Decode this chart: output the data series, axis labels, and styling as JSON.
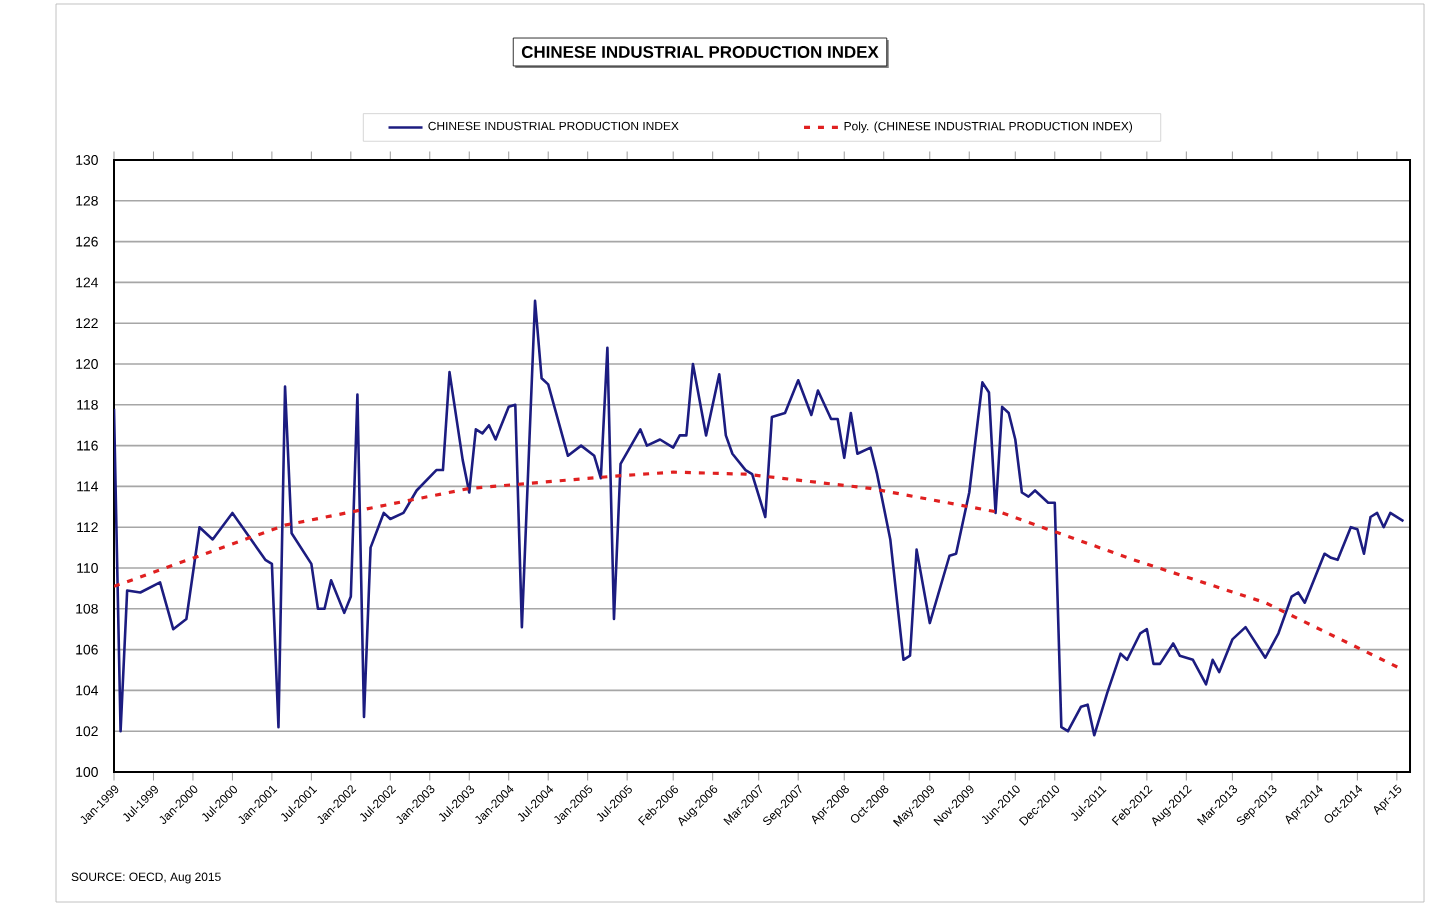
{
  "chart_data": {
    "type": "line",
    "title": "CHINESE INDUSTRIAL PRODUCTION INDEX",
    "annotations": [
      "SOURCE: OECD, Aug 2015"
    ],
    "xlim": [
      "1999-01",
      "2015-06"
    ],
    "xticks": [
      {
        "value": "1999-01",
        "label": "Jan-1999"
      },
      {
        "value": "1999-07",
        "label": "Jul-1999"
      },
      {
        "value": "2000-01",
        "label": "Jan-2000"
      },
      {
        "value": "2000-07",
        "label": "Jul-2000"
      },
      {
        "value": "2001-01",
        "label": "Jan-2001"
      },
      {
        "value": "2001-07",
        "label": "Jul-2001"
      },
      {
        "value": "2002-01",
        "label": "Jan-2002"
      },
      {
        "value": "2002-07",
        "label": "Jul-2002"
      },
      {
        "value": "2003-01",
        "label": "Jan-2003"
      },
      {
        "value": "2003-07",
        "label": "Jul-2003"
      },
      {
        "value": "2004-01",
        "label": "Jan-2004"
      },
      {
        "value": "2004-07",
        "label": "Jul-2004"
      },
      {
        "value": "2005-01",
        "label": "Jan-2005"
      },
      {
        "value": "2005-07",
        "label": "Jul-2005"
      },
      {
        "value": "2006-02",
        "label": "Feb-2006"
      },
      {
        "value": "2006-08",
        "label": "Aug-2006"
      },
      {
        "value": "2007-03",
        "label": "Mar-2007"
      },
      {
        "value": "2007-09",
        "label": "Sep-2007"
      },
      {
        "value": "2008-04",
        "label": "Apr-2008"
      },
      {
        "value": "2008-10",
        "label": "Oct-2008"
      },
      {
        "value": "2009-05",
        "label": "May-2009"
      },
      {
        "value": "2009-11",
        "label": "Nov-2009"
      },
      {
        "value": "2010-06",
        "label": "Jun-2010"
      },
      {
        "value": "2010-12",
        "label": "Dec-2010"
      },
      {
        "value": "2011-07",
        "label": "Jul-2011"
      },
      {
        "value": "2012-02",
        "label": "Feb-2012"
      },
      {
        "value": "2012-08",
        "label": "Aug-2012"
      },
      {
        "value": "2013-03",
        "label": "Mar-2013"
      },
      {
        "value": "2013-09",
        "label": "Sep-2013"
      },
      {
        "value": "2014-04",
        "label": "Apr-2014"
      },
      {
        "value": "2014-10",
        "label": "Oct-2014"
      },
      {
        "value": "2015-04",
        "label": "Apr-15"
      }
    ],
    "ylim": [
      100,
      130
    ],
    "yticks": [
      100,
      102,
      104,
      106,
      108,
      110,
      112,
      114,
      116,
      118,
      120,
      122,
      124,
      126,
      128,
      130
    ],
    "grid": "y",
    "legend": "top",
    "marker": "none",
    "series": [
      {
        "name": "CHINESE INDUSTRIAL PRODUCTION INDEX",
        "color": "#1c1c80",
        "line_style": "solid",
        "x": [
          "1999-01",
          "1999-02",
          "1999-03",
          "1999-05",
          "1999-08",
          "1999-10",
          "1999-12",
          "2000-02",
          "2000-04",
          "2000-07",
          "2000-12",
          "2001-01",
          "2001-02",
          "2001-03",
          "2001-04",
          "2001-07",
          "2001-08",
          "2001-09",
          "2001-10",
          "2001-12",
          "2002-01",
          "2002-02",
          "2002-03",
          "2002-04",
          "2002-06",
          "2002-07",
          "2002-09",
          "2002-11",
          "2003-02",
          "2003-03",
          "2003-04",
          "2003-06",
          "2003-07",
          "2003-08",
          "2003-09",
          "2003-10",
          "2003-11",
          "2004-01",
          "2004-02",
          "2004-03",
          "2004-05",
          "2004-06",
          "2004-07",
          "2004-10",
          "2004-12",
          "2005-02",
          "2005-03",
          "2005-04",
          "2005-05",
          "2005-06",
          "2005-09",
          "2005-10",
          "2005-12",
          "2006-02",
          "2006-03",
          "2006-04",
          "2006-05",
          "2006-07",
          "2006-09",
          "2006-10",
          "2006-11",
          "2007-01",
          "2007-02",
          "2007-04",
          "2007-05",
          "2007-07",
          "2007-09",
          "2007-11",
          "2007-12",
          "2008-02",
          "2008-03",
          "2008-04",
          "2008-05",
          "2008-06",
          "2008-08",
          "2008-09",
          "2008-11",
          "2009-01",
          "2009-02",
          "2009-03",
          "2009-05",
          "2009-08",
          "2009-09",
          "2009-11",
          "2010-01",
          "2010-02",
          "2010-03",
          "2010-04",
          "2010-05",
          "2010-06",
          "2010-07",
          "2010-08",
          "2010-09",
          "2010-11",
          "2010-12",
          "2011-01",
          "2011-02",
          "2011-04",
          "2011-05",
          "2011-06",
          "2011-08",
          "2011-10",
          "2011-11",
          "2012-01",
          "2012-02",
          "2012-03",
          "2012-04",
          "2012-06",
          "2012-07",
          "2012-09",
          "2012-11",
          "2012-12",
          "2013-01",
          "2013-03",
          "2013-05",
          "2013-08",
          "2013-10",
          "2013-12",
          "2014-01",
          "2014-02",
          "2014-05",
          "2014-06",
          "2014-07",
          "2014-09",
          "2014-10",
          "2014-11",
          "2014-12",
          "2015-01",
          "2015-02",
          "2015-03",
          "2015-05"
        ],
        "values": [
          117.8,
          102,
          108.9,
          108.8,
          109.3,
          107,
          107.5,
          112,
          111.4,
          112.7,
          110.4,
          110.2,
          102.2,
          118.9,
          111.7,
          110.2,
          108,
          108,
          109.4,
          107.8,
          108.6,
          118.5,
          102.7,
          111,
          112.7,
          112.4,
          112.7,
          113.8,
          114.8,
          114.8,
          119.6,
          115.3,
          113.7,
          116.8,
          116.6,
          117,
          116.3,
          117.9,
          118,
          107.1,
          123.1,
          119.3,
          119,
          115.5,
          116,
          115.5,
          114.4,
          120.8,
          107.5,
          115.1,
          116.8,
          116,
          116.3,
          115.9,
          116.5,
          116.5,
          120,
          116.5,
          119.5,
          116.5,
          115.6,
          114.8,
          114.6,
          112.5,
          117.4,
          117.6,
          119.2,
          117.5,
          118.7,
          117.3,
          117.3,
          115.4,
          117.6,
          115.6,
          115.9,
          114.6,
          111.4,
          105.5,
          105.7,
          110.9,
          107.3,
          110.6,
          110.7,
          113.7,
          119.1,
          118.6,
          112.7,
          117.9,
          117.6,
          116.3,
          113.7,
          113.5,
          113.8,
          113.2,
          113.2,
          102.2,
          102,
          103.2,
          103.3,
          101.8,
          103.9,
          105.8,
          105.5,
          106.8,
          107,
          105.3,
          105.3,
          106.3,
          105.7,
          105.5,
          104.3,
          105.5,
          104.9,
          106.5,
          107.1,
          105.6,
          106.8,
          108.6,
          108.8,
          108.3,
          110.7,
          110.5,
          110.4,
          112,
          111.9,
          110.7,
          112.5,
          112.7,
          112,
          112.7,
          112.3
        ]
      },
      {
        "name": "Poly. (CHINESE INDUSTRIAL PRODUCTION INDEX)",
        "color": "#e02020",
        "line_style": "dashed",
        "x": [
          "1999-01",
          "2001-03",
          "2003-07",
          "2005-05",
          "2006-02",
          "2007-01",
          "2008-08",
          "2010-04",
          "2011-12",
          "2013-08",
          "2015-05"
        ],
        "values": [
          109.1,
          112.1,
          113.9,
          114.5,
          114.7,
          114.6,
          113.9,
          112.7,
          110.4,
          108.3,
          105
        ]
      }
    ]
  }
}
